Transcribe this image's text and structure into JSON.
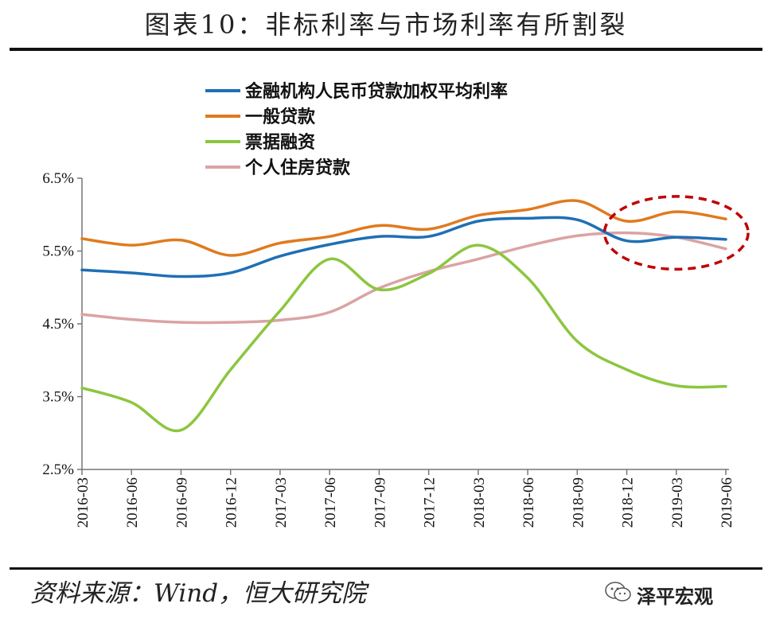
{
  "title": "图表10：非标利率与市场利率有所割裂",
  "source": "资料来源：Wind，恒大研究院",
  "watermark": "泽平宏观",
  "chart_data": {
    "type": "line",
    "categories": [
      "2016-03",
      "2016-06",
      "2016-09",
      "2016-12",
      "2017-03",
      "2017-06",
      "2017-09",
      "2017-12",
      "2018-03",
      "2018-06",
      "2018-09",
      "2018-12",
      "2019-03",
      "2019-06"
    ],
    "ylim": [
      2.5,
      6.5
    ],
    "yticks": [
      "2.5%",
      "3.5%",
      "4.5%",
      "5.5%",
      "6.5%"
    ],
    "ytick_values": [
      2.5,
      3.5,
      4.5,
      5.5,
      6.5
    ],
    "legend_position": "top-left",
    "series": [
      {
        "name": "金融机构人民币贷款加权平均利率",
        "color": "#1f6fb5",
        "values": [
          5.24,
          5.2,
          5.15,
          5.2,
          5.43,
          5.59,
          5.7,
          5.7,
          5.91,
          5.95,
          5.93,
          5.64,
          5.69,
          5.66
        ]
      },
      {
        "name": "一般贷款",
        "color": "#e07a1f",
        "values": [
          5.67,
          5.58,
          5.65,
          5.44,
          5.61,
          5.7,
          5.85,
          5.8,
          5.99,
          6.07,
          6.19,
          5.91,
          6.04,
          5.94
        ]
      },
      {
        "name": "票据融资",
        "color": "#8cc63f",
        "values": [
          3.62,
          3.42,
          3.04,
          3.87,
          4.68,
          5.39,
          4.97,
          5.19,
          5.58,
          5.13,
          4.26,
          3.87,
          3.65,
          3.64
        ]
      },
      {
        "name": "个人住房贷款",
        "color": "#dba3a3",
        "values": [
          4.63,
          4.56,
          4.52,
          4.52,
          4.55,
          4.66,
          4.99,
          5.22,
          5.39,
          5.57,
          5.71,
          5.75,
          5.69,
          5.53
        ]
      }
    ],
    "annotation": {
      "type": "dashed-ellipse",
      "color": "#c00000",
      "from_category": "2018-12",
      "to_category": "2019-06",
      "y_range": [
        5.25,
        6.25
      ]
    }
  }
}
